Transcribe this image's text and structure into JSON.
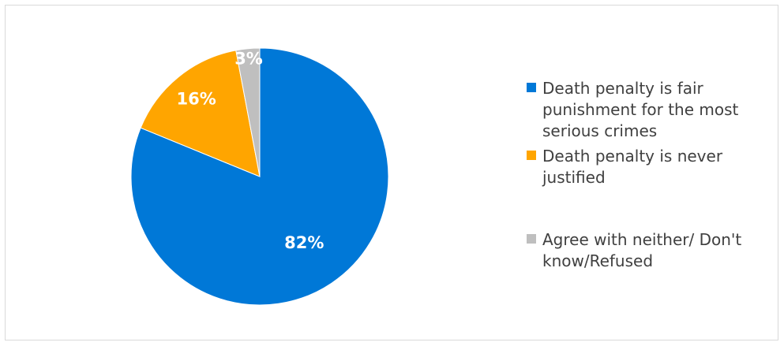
{
  "chart_data": {
    "type": "pie",
    "title": "",
    "slices": [
      {
        "label": "Death penalty is fair punishment for the most serious crimes",
        "value": 82,
        "display": "82%",
        "color": "#0078D7"
      },
      {
        "label": "Death penalty is never justified",
        "value": 16,
        "display": "16%",
        "color": "#FFA500"
      },
      {
        "label": "Agree with neither/ Don't know/Refused",
        "value": 3,
        "display": "3%",
        "color": "#BFBFBF"
      }
    ],
    "legend_position": "right"
  },
  "legend": {
    "items": [
      {
        "text": "Death penalty is fair punishment for the most serious crimes",
        "color": "#0078D7"
      },
      {
        "text": "Death penalty is never justified",
        "color": "#FFA500"
      },
      {
        "text": "Agree with neither/ Don't know/Refused",
        "color": "#BFBFBF"
      }
    ]
  }
}
